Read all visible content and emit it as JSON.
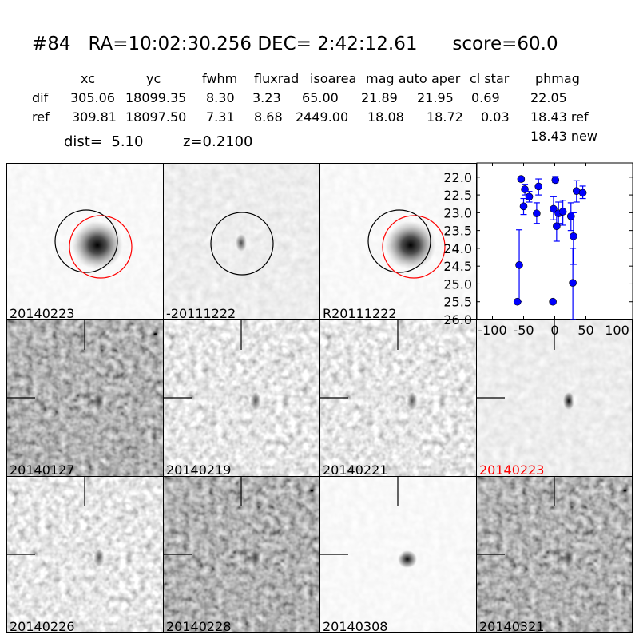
{
  "header": {
    "title": "#84   RA=10:02:30.256 DEC= 2:42:12.61      score=60.0",
    "columns": [
      "xc",
      "yc",
      "fwhm",
      "fluxrad",
      "isoarea",
      "mag auto",
      "aper",
      "cl star",
      "phmag"
    ],
    "rows": [
      {
        "label": "dif",
        "values": [
          "305.06",
          "18099.35",
          "8.30",
          "3.23",
          "65.00",
          "21.89",
          "21.95",
          "0.69",
          "22.05"
        ]
      },
      {
        "label": "ref",
        "values": [
          "309.81",
          "18097.50",
          "7.31",
          "8.68",
          "2449.00",
          "18.08",
          "18.72",
          "0.03",
          "18.43 ref"
        ]
      }
    ],
    "extra_phmag": "18.43 new",
    "dist": "dist=  5.10",
    "z": "z=0.2100"
  },
  "panels": [
    {
      "label": "20140223",
      "color": "#000000"
    },
    {
      "label": "-20111222",
      "color": "#000000"
    },
    {
      "label": "R20111222",
      "color": "#000000"
    },
    {
      "label": "20140127",
      "color": "#000000"
    },
    {
      "label": "20140219",
      "color": "#000000"
    },
    {
      "label": "20140221",
      "color": "#000000"
    },
    {
      "label": "20140223",
      "color": "#ff0000"
    },
    {
      "label": "20140226",
      "color": "#000000"
    },
    {
      "label": "20140228",
      "color": "#000000"
    },
    {
      "label": "20140308",
      "color": "#000000"
    },
    {
      "label": "20140321",
      "color": "#000000"
    }
  ],
  "circles": {
    "ref_color": "#000000",
    "new_color": "#ff0000"
  },
  "chart_data": {
    "type": "scatter",
    "title": "",
    "xlabel": "",
    "ylabel": "",
    "xlim": [
      -125,
      125
    ],
    "ylim": [
      26.0,
      21.6
    ],
    "y_inverted": true,
    "xticks": [
      "-100",
      "-50",
      "0",
      "50",
      "100"
    ],
    "yticks": [
      "22.0",
      "22.5",
      "23.0",
      "23.5",
      "24.0",
      "24.5",
      "25.0",
      "25.5",
      "26.0"
    ],
    "color": "#0000ff",
    "points": [
      {
        "x": -54,
        "y": 22.05,
        "lo": 22.0,
        "hi": 22.12
      },
      {
        "x": -48,
        "y": 22.34,
        "lo": 22.2,
        "hi": 22.5
      },
      {
        "x": -41,
        "y": 22.55,
        "lo": 22.4,
        "hi": 22.7
      },
      {
        "x": -50,
        "y": 22.82,
        "lo": 22.6,
        "hi": 23.05
      },
      {
        "x": -26,
        "y": 22.26,
        "lo": 22.05,
        "hi": 22.5
      },
      {
        "x": -29,
        "y": 23.02,
        "lo": 22.72,
        "hi": 23.3
      },
      {
        "x": -57,
        "y": 24.47,
        "lo": 23.48,
        "hi": 25.5
      },
      {
        "x": -60,
        "y": 25.5,
        "lo": 25.45,
        "hi": 25.55
      },
      {
        "x": 1,
        "y": 22.08,
        "lo": 21.98,
        "hi": 22.15
      },
      {
        "x": -2,
        "y": 22.89,
        "lo": 22.55,
        "hi": 23.2
      },
      {
        "x": 6,
        "y": 23.02,
        "lo": 22.7,
        "hi": 23.3
      },
      {
        "x": 13,
        "y": 22.97,
        "lo": 22.65,
        "hi": 23.35
      },
      {
        "x": 3,
        "y": 23.38,
        "lo": 23.0,
        "hi": 23.8
      },
      {
        "x": 26,
        "y": 23.1,
        "lo": 22.72,
        "hi": 23.5
      },
      {
        "x": 30,
        "y": 23.66,
        "lo": 23.0,
        "hi": 24.45
      },
      {
        "x": 29,
        "y": 24.97,
        "lo": 24.0,
        "hi": 26.0
      },
      {
        "x": -3,
        "y": 25.5,
        "lo": 25.45,
        "hi": 25.55
      },
      {
        "x": 35,
        "y": 22.39,
        "lo": 22.1,
        "hi": 22.7
      },
      {
        "x": 45,
        "y": 22.44,
        "lo": 22.25,
        "hi": 22.6
      }
    ]
  }
}
